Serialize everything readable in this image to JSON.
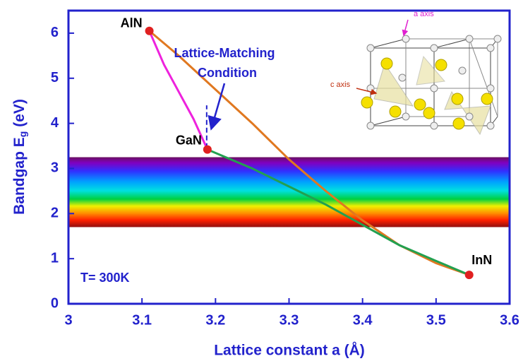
{
  "chart_data": {
    "type": "line",
    "xlabel": "Lattice constant a (Å)",
    "ylabel": {
      "main": "Bandgap E",
      "sub": "g",
      "unit": "(eV)"
    },
    "xlim": [
      3,
      3.6
    ],
    "xticks": [
      3,
      3.1,
      3.2,
      3.3,
      3.4,
      3.5,
      3.6
    ],
    "ylim": [
      0,
      6.5
    ],
    "yticks": [
      0,
      1,
      2,
      3,
      4,
      5,
      6
    ],
    "band": [
      1.7,
      3.25
    ],
    "series": [
      {
        "color": "#ee22dd",
        "x": [
          3.11,
          3.13,
          3.15,
          3.17,
          3.189
        ],
        "values": [
          6.05,
          5.3,
          4.7,
          4.1,
          3.42
        ]
      },
      {
        "color": "#e07820",
        "x": [
          3.11,
          3.15,
          3.2,
          3.25,
          3.3,
          3.35,
          3.4,
          3.45,
          3.5,
          3.545
        ],
        "values": [
          6.05,
          5.5,
          4.75,
          4.0,
          3.2,
          2.5,
          1.85,
          1.3,
          0.9,
          0.64
        ]
      },
      {
        "color": "#22a050",
        "x": [
          3.189,
          3.25,
          3.3,
          3.35,
          3.4,
          3.45,
          3.5,
          3.545
        ],
        "values": [
          3.42,
          3.0,
          2.6,
          2.2,
          1.75,
          1.3,
          0.95,
          0.64
        ]
      }
    ],
    "points": [
      {
        "label": "AlN",
        "x": 3.11,
        "y": 6.05
      },
      {
        "label": "GaN",
        "x": 3.189,
        "y": 3.42
      },
      {
        "label": "InN",
        "x": 3.545,
        "y": 0.64
      }
    ],
    "dashed_line": {
      "x": 3.188,
      "y": [
        3.45,
        4.4
      ]
    },
    "annotations": {
      "matching": [
        "Lattice-Matching",
        "Condition"
      ],
      "temperature": "T= 300K",
      "a_axis": "a axis",
      "c_axis": "c axis"
    }
  }
}
